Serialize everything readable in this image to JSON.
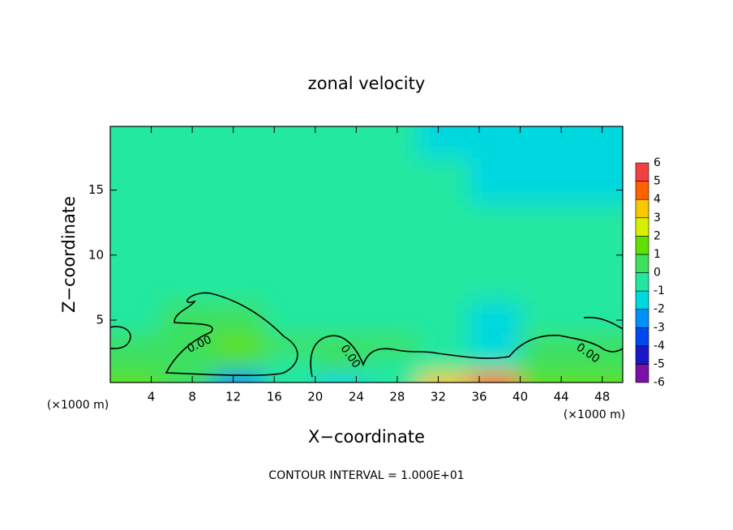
{
  "chart_data": {
    "type": "contour",
    "title": "zonal velocity",
    "x_label": "X−coordinate",
    "y_label": "Z−coordinate",
    "x_unit_label": "(×1000 m)",
    "footer": "CONTOUR INTERVAL = 1.000E+01",
    "contour_labels": [
      "0.00",
      "0.00",
      "0.00"
    ],
    "xlim": [
      0,
      50
    ],
    "ylim": [
      0.2,
      19.9
    ],
    "xticks": [
      4,
      8,
      12,
      16,
      20,
      24,
      28,
      32,
      36,
      40,
      44,
      48
    ],
    "yticks": [
      5,
      10,
      15
    ],
    "x": [
      2.5,
      7.5,
      12.5,
      17.5,
      22.5,
      27.5,
      32.5,
      37.5,
      42.5,
      47.5
    ],
    "z": [
      0.4,
      1.5,
      3,
      5,
      8,
      12,
      16,
      19
    ],
    "values": [
      [
        1,
        0,
        -3,
        -1,
        -2,
        -1,
        3,
        4,
        1,
        1
      ],
      [
        0.5,
        0.5,
        0.5,
        -0.5,
        0,
        -0.5,
        -0.5,
        -1,
        0.5,
        0.5
      ],
      [
        0.5,
        0.5,
        1,
        0.5,
        0,
        0,
        -0.5,
        -1.5,
        0.5,
        0.5
      ],
      [
        -0.5,
        0,
        0.5,
        -0.5,
        -0.5,
        -0.5,
        -1,
        -1.5,
        -0.5,
        -0.5
      ],
      [
        -0.5,
        -0.5,
        -0.5,
        -0.5,
        -0.5,
        -0.5,
        -1,
        -1,
        -0.5,
        -0.5
      ],
      [
        -0.5,
        -0.5,
        -0.5,
        -0.5,
        -0.5,
        -1,
        -0.5,
        -1,
        -0.5,
        -0.5
      ],
      [
        -0.5,
        -0.5,
        -0.5,
        -0.5,
        -0.5,
        -1,
        -1,
        -1.5,
        -1.5,
        -1.5
      ],
      [
        -0.5,
        -0.5,
        -0.5,
        -0.5,
        -1,
        -1,
        -1.5,
        -1.5,
        -1.5,
        -1.5
      ]
    ],
    "colorbar_levels": [
      -6,
      -5,
      -4,
      -3,
      -2,
      -1,
      0,
      1,
      2,
      3,
      4,
      5,
      6
    ],
    "colorbar_colors": [
      "#7a10a8",
      "#1818c8",
      "#0048f0",
      "#0090f8",
      "#00d8e0",
      "#20e8a0",
      "#3ee060",
      "#60e000",
      "#d8f000",
      "#f8c800",
      "#ff6000",
      "#f44040"
    ]
  }
}
